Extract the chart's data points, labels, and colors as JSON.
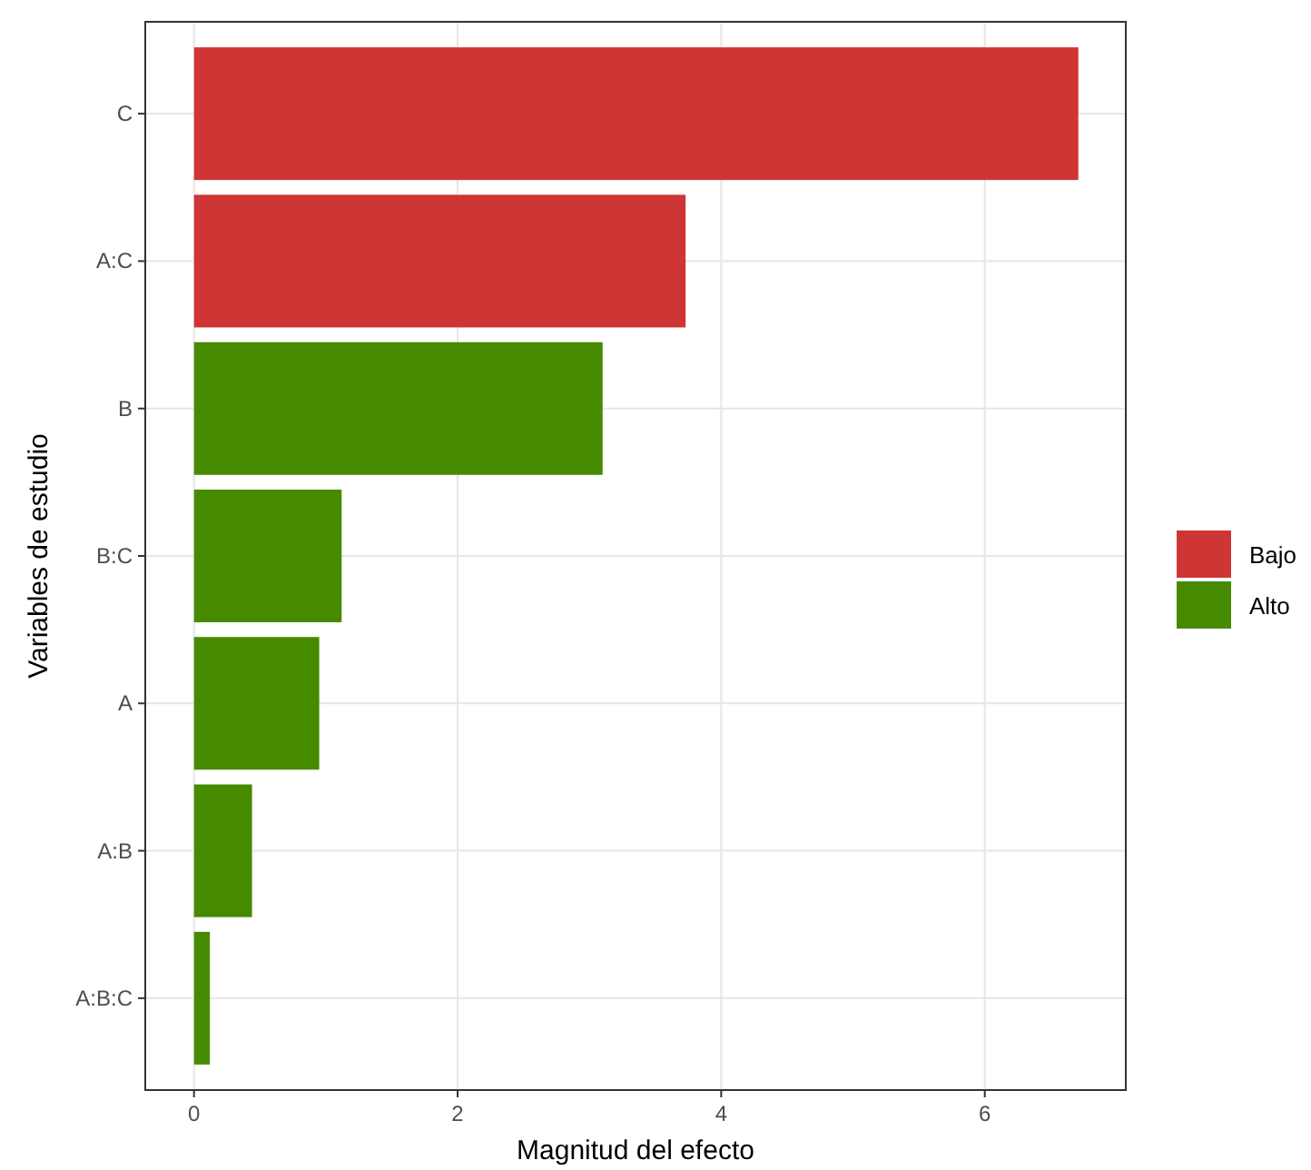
{
  "chart_data": {
    "type": "bar",
    "orientation": "horizontal",
    "stacked": true,
    "xlabel": "Magnitud del efecto",
    "ylabel": "Variables de estudio",
    "categories": [
      "C",
      "A:C",
      "B",
      "B:C",
      "A",
      "A:B",
      "A:B:C"
    ],
    "series": [
      {
        "name": "Bajo",
        "color": "#d03536",
        "values": [
          6.71,
          3.73,
          null,
          null,
          null,
          null,
          null
        ]
      },
      {
        "name": "Alto",
        "color": "#468a00",
        "values": [
          null,
          null,
          3.1,
          1.12,
          0.95,
          0.44,
          0.12
        ]
      }
    ],
    "xlim": [
      -0.37,
      7.07
    ],
    "xticks": [
      0,
      2,
      4,
      6
    ],
    "grid": true,
    "legend": "right"
  }
}
